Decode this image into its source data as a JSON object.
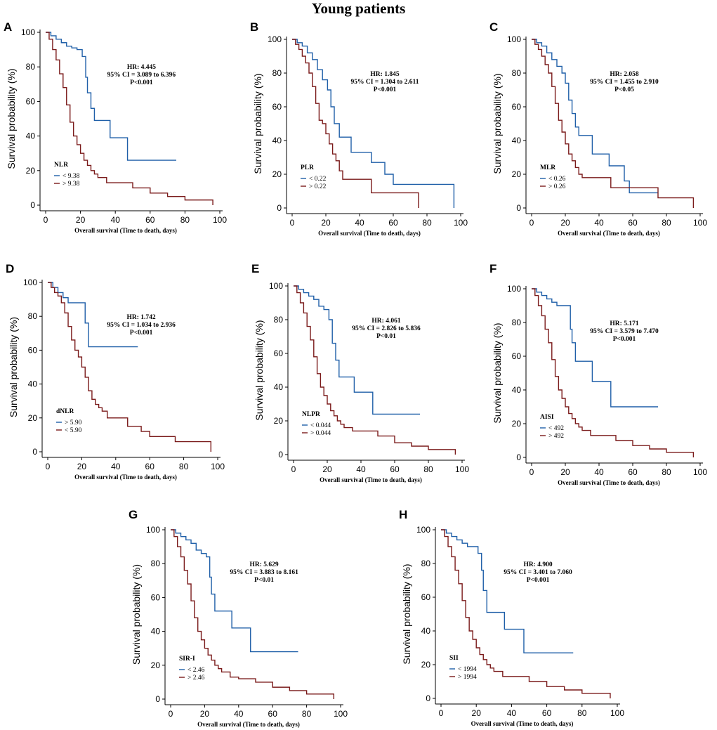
{
  "title": "Young patients",
  "colors": {
    "blue": "#1f5fa8",
    "red": "#7a1a1a",
    "axis": "#000000"
  },
  "chart_data": [
    {
      "letter": "A",
      "type": "line",
      "ylabel": "Survival probability (%)",
      "xlabel": "Overall survival (Time to death, days)",
      "xlim": [
        0,
        100
      ],
      "ylim": [
        0,
        100
      ],
      "xticks": [
        0,
        20,
        40,
        60,
        80,
        100
      ],
      "yticks": [
        0,
        20,
        40,
        60,
        80,
        100
      ],
      "annotation": [
        "HR: 4.445",
        "95% CI = 3.089 to 6.396",
        "P<0.001"
      ],
      "legend_title": "NLR",
      "series": [
        {
          "name": "< 9.38",
          "color": "blue",
          "x": [
            0,
            3,
            6,
            9,
            12,
            15,
            18,
            21,
            23,
            24,
            26,
            28,
            34,
            37,
            47,
            75
          ],
          "y": [
            100,
            98,
            96,
            94,
            92,
            91,
            90,
            86,
            74,
            65,
            56,
            49,
            49,
            39,
            26,
            26
          ]
        },
        {
          "name": "> 9.38",
          "color": "red",
          "x": [
            0,
            2,
            4,
            6,
            8,
            10,
            12,
            14,
            16,
            18,
            20,
            22,
            24,
            26,
            28,
            30,
            35,
            40,
            50,
            60,
            70,
            80,
            96
          ],
          "y": [
            100,
            96,
            90,
            84,
            76,
            68,
            58,
            48,
            40,
            35,
            30,
            26,
            23,
            20,
            18,
            16,
            13,
            13,
            10,
            7,
            5,
            3,
            0
          ]
        }
      ]
    },
    {
      "letter": "B",
      "type": "line",
      "ylabel": "Survival probability (%)",
      "xlabel": "Overall survival (Time to death, days)",
      "xlim": [
        0,
        100
      ],
      "ylim": [
        0,
        100
      ],
      "xticks": [
        0,
        20,
        40,
        60,
        80,
        100
      ],
      "yticks": [
        0,
        20,
        40,
        60,
        80,
        100
      ],
      "annotation": [
        "HR: 1.845",
        "95% CI = 1.304 to 2.611",
        "P<0.001"
      ],
      "legend_title": "PLR",
      "series": [
        {
          "name": "< 0.22",
          "color": "blue",
          "x": [
            0,
            3,
            6,
            9,
            12,
            15,
            18,
            21,
            23,
            25,
            28,
            30,
            35,
            47,
            55,
            60,
            75,
            96
          ],
          "y": [
            100,
            98,
            96,
            92,
            88,
            82,
            76,
            70,
            60,
            50,
            42,
            42,
            33,
            27,
            20,
            14,
            14,
            0
          ]
        },
        {
          "name": "> 0.22",
          "color": "red",
          "x": [
            0,
            2,
            4,
            6,
            8,
            10,
            12,
            14,
            16,
            18,
            20,
            22,
            24,
            26,
            28,
            30,
            35,
            47,
            55,
            60,
            75
          ],
          "y": [
            100,
            97,
            94,
            90,
            86,
            80,
            72,
            62,
            52,
            50,
            44,
            38,
            32,
            28,
            22,
            17,
            17,
            9,
            9,
            9,
            0
          ]
        }
      ]
    },
    {
      "letter": "C",
      "type": "line",
      "ylabel": "Survival probability (%)",
      "xlabel": "Overall survival (Time to death, days)",
      "xlim": [
        0,
        100
      ],
      "ylim": [
        0,
        100
      ],
      "xticks": [
        0,
        20,
        40,
        60,
        80,
        100
      ],
      "yticks": [
        0,
        20,
        40,
        60,
        80,
        100
      ],
      "annotation": [
        "HR: 2.058",
        "95% CI = 1.455 to 2.910",
        "P<0.05"
      ],
      "legend_title": "MLR",
      "series": [
        {
          "name": "< 0.26",
          "color": "blue",
          "x": [
            0,
            3,
            6,
            9,
            12,
            15,
            18,
            20,
            22,
            24,
            26,
            28,
            30,
            36,
            46,
            55,
            58,
            65,
            75
          ],
          "y": [
            100,
            98,
            96,
            92,
            88,
            84,
            80,
            74,
            64,
            56,
            48,
            43,
            43,
            32,
            25,
            16,
            9,
            9,
            9
          ]
        },
        {
          "name": "> 0.26",
          "color": "red",
          "x": [
            0,
            2,
            4,
            6,
            8,
            10,
            12,
            14,
            16,
            18,
            20,
            22,
            24,
            26,
            28,
            30,
            35,
            47,
            60,
            75,
            85,
            96
          ],
          "y": [
            100,
            97,
            94,
            90,
            85,
            80,
            72,
            62,
            52,
            45,
            38,
            32,
            28,
            24,
            20,
            18,
            18,
            12,
            12,
            6,
            6,
            0
          ]
        }
      ]
    },
    {
      "letter": "D",
      "type": "line",
      "ylabel": "Survival probability (%)",
      "xlabel": "Overall survival (Time to death, days)",
      "xlim": [
        0,
        100
      ],
      "ylim": [
        0,
        100
      ],
      "xticks": [
        0,
        20,
        40,
        60,
        80,
        100
      ],
      "yticks": [
        0,
        20,
        40,
        60,
        80,
        100
      ],
      "annotation": [
        "HR: 1.742",
        "95% CI = 1.034 to 2.936",
        "P<0.001"
      ],
      "legend_title": "dNLR",
      "series": [
        {
          "name": "> 5.90",
          "color": "blue",
          "x": [
            0,
            3,
            6,
            9,
            12,
            15,
            22,
            24,
            53
          ],
          "y": [
            100,
            97,
            94,
            91,
            88,
            88,
            76,
            62,
            62
          ]
        },
        {
          "name": "< 5.90",
          "color": "red",
          "x": [
            0,
            2,
            4,
            6,
            8,
            10,
            12,
            14,
            16,
            18,
            20,
            22,
            24,
            26,
            28,
            30,
            32,
            35,
            40,
            47,
            55,
            60,
            75,
            96
          ],
          "y": [
            100,
            97,
            94,
            92,
            88,
            82,
            74,
            66,
            60,
            56,
            50,
            44,
            36,
            31,
            28,
            26,
            24,
            20,
            20,
            15,
            12,
            9,
            6,
            0
          ]
        }
      ]
    },
    {
      "letter": "E",
      "type": "line",
      "ylabel": "Survival probability (%)",
      "xlabel": "Overall survival (Time to death, days)",
      "xlim": [
        0,
        100
      ],
      "ylim": [
        0,
        100
      ],
      "xticks": [
        0,
        20,
        40,
        60,
        80,
        100
      ],
      "yticks": [
        0,
        20,
        40,
        60,
        80,
        100
      ],
      "annotation": [
        "HR: 4.061",
        "95% CI = 2.826 to 5.836",
        "P<0.01"
      ],
      "legend_title": "NLPR",
      "series": [
        {
          "name": "< 0.044",
          "color": "blue",
          "x": [
            0,
            3,
            6,
            9,
            12,
            15,
            18,
            21,
            23,
            25,
            27,
            28,
            36,
            47,
            75
          ],
          "y": [
            100,
            98,
            96,
            94,
            92,
            88,
            86,
            80,
            66,
            56,
            46,
            46,
            37,
            24,
            24
          ]
        },
        {
          "name": "> 0.044",
          "color": "red",
          "x": [
            0,
            2,
            4,
            6,
            8,
            10,
            12,
            14,
            16,
            18,
            20,
            22,
            24,
            26,
            28,
            30,
            35,
            40,
            50,
            60,
            70,
            80,
            96
          ],
          "y": [
            100,
            96,
            90,
            84,
            76,
            68,
            58,
            48,
            40,
            35,
            30,
            26,
            23,
            20,
            18,
            16,
            14,
            14,
            11,
            7,
            5,
            3,
            0
          ]
        }
      ]
    },
    {
      "letter": "F",
      "type": "line",
      "ylabel": "Survival probability (%)",
      "xlabel": "Overall survival (Time to death, days)",
      "xlim": [
        0,
        100
      ],
      "ylim": [
        0,
        100
      ],
      "xticks": [
        0,
        20,
        40,
        60,
        80,
        100
      ],
      "yticks": [
        0,
        20,
        40,
        60,
        80,
        100
      ],
      "annotation": [
        "HR: 5.171",
        "95% CI = 3.579 to 7.470",
        "P<0.001"
      ],
      "legend_title": "AISI",
      "series": [
        {
          "name": "< 492",
          "color": "blue",
          "x": [
            0,
            3,
            6,
            9,
            12,
            15,
            18,
            21,
            23,
            24,
            26,
            28,
            36,
            47,
            75
          ],
          "y": [
            100,
            98,
            96,
            94,
            92,
            90,
            90,
            90,
            76,
            68,
            57,
            57,
            45,
            30,
            30
          ]
        },
        {
          "name": "> 492",
          "color": "red",
          "x": [
            0,
            2,
            4,
            6,
            8,
            10,
            12,
            14,
            16,
            18,
            20,
            22,
            24,
            26,
            28,
            30,
            35,
            40,
            50,
            60,
            70,
            80,
            96
          ],
          "y": [
            100,
            96,
            90,
            84,
            76,
            68,
            58,
            48,
            40,
            35,
            30,
            26,
            23,
            20,
            18,
            16,
            13,
            13,
            10,
            7,
            5,
            3,
            0
          ]
        }
      ]
    },
    {
      "letter": "G",
      "type": "line",
      "ylabel": "Survival probability (%)",
      "xlabel": "Overall survival (Time to death, days)",
      "xlim": [
        0,
        100
      ],
      "ylim": [
        0,
        100
      ],
      "xticks": [
        0,
        20,
        40,
        60,
        80,
        100
      ],
      "yticks": [
        0,
        20,
        40,
        60,
        80,
        100
      ],
      "annotation": [
        "HR: 5.629",
        "95% CI = 3.883 to 8.161",
        "P<0.01"
      ],
      "legend_title": "SIR-I",
      "series": [
        {
          "name": "< 2.46",
          "color": "blue",
          "x": [
            0,
            3,
            6,
            9,
            12,
            15,
            18,
            21,
            23,
            24,
            26,
            28,
            36,
            47,
            75
          ],
          "y": [
            100,
            98,
            96,
            94,
            92,
            88,
            86,
            84,
            72,
            62,
            52,
            52,
            42,
            28,
            28
          ]
        },
        {
          "name": "> 2.46",
          "color": "red",
          "x": [
            0,
            2,
            4,
            6,
            8,
            10,
            12,
            14,
            16,
            18,
            20,
            22,
            24,
            26,
            28,
            30,
            35,
            40,
            50,
            60,
            70,
            80,
            96
          ],
          "y": [
            100,
            96,
            90,
            84,
            76,
            68,
            58,
            48,
            40,
            35,
            30,
            26,
            23,
            20,
            18,
            16,
            13,
            12,
            10,
            7,
            5,
            3,
            0
          ]
        }
      ]
    },
    {
      "letter": "H",
      "type": "line",
      "ylabel": "Survival probability (%)",
      "xlabel": "Overall survival (Time to death, days)",
      "xlim": [
        0,
        100
      ],
      "ylim": [
        0,
        100
      ],
      "xticks": [
        0,
        20,
        40,
        60,
        80,
        100
      ],
      "yticks": [
        0,
        20,
        40,
        60,
        80,
        100
      ],
      "annotation": [
        "HR: 4.900",
        "95% CI = 3.401 to 7.060",
        "P<0.001"
      ],
      "legend_title": "SII",
      "series": [
        {
          "name": "< 1994",
          "color": "blue",
          "x": [
            0,
            3,
            6,
            9,
            12,
            15,
            18,
            21,
            23,
            24,
            26,
            28,
            36,
            47,
            75
          ],
          "y": [
            100,
            98,
            96,
            94,
            92,
            90,
            90,
            86,
            76,
            64,
            51,
            51,
            41,
            27,
            27
          ]
        },
        {
          "name": "> 1994",
          "color": "red",
          "x": [
            0,
            2,
            4,
            6,
            8,
            10,
            12,
            14,
            16,
            18,
            20,
            22,
            24,
            26,
            28,
            30,
            35,
            40,
            50,
            60,
            70,
            80,
            96
          ],
          "y": [
            100,
            96,
            90,
            84,
            76,
            68,
            58,
            48,
            40,
            35,
            30,
            26,
            23,
            20,
            18,
            16,
            13,
            13,
            10,
            7,
            5,
            3,
            0
          ]
        }
      ]
    }
  ]
}
